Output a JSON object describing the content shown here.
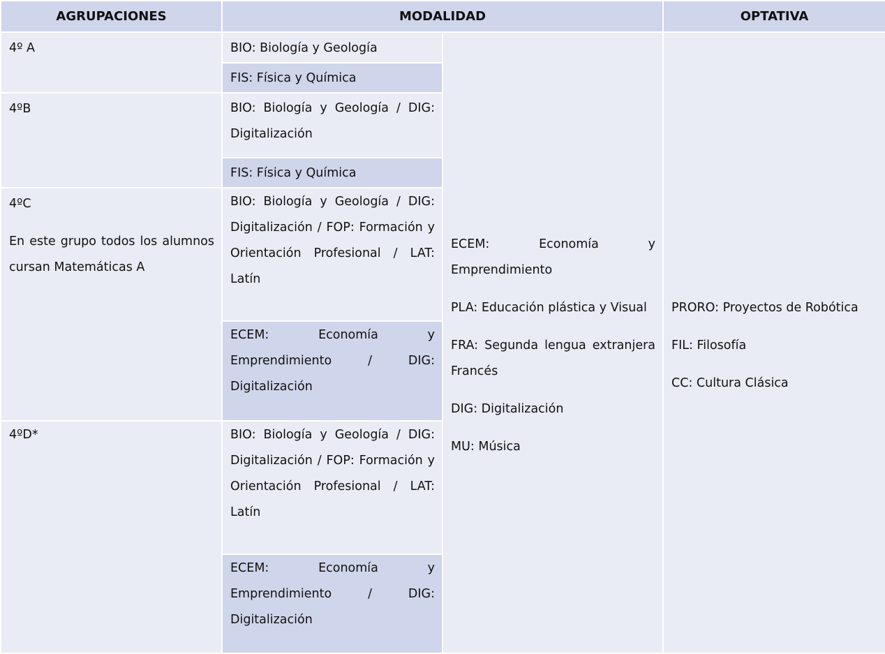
{
  "headers": {
    "agrupaciones": "AGRUPACIONES",
    "modalidad": "MODALIDAD",
    "optativa": "OPTATIVA"
  },
  "groups": {
    "a": {
      "name": "4º A",
      "modalidad": [
        "BIO: Biología y Geología",
        "FIS: Física y Química"
      ]
    },
    "b": {
      "name": "4ºB",
      "modalidad": [
        "BIO: Biología y Geología / DIG: Digitalización",
        "FIS: Física y Química"
      ]
    },
    "c": {
      "name": "4ºC",
      "note": "En este grupo todos los alumnos cursan Matemáticas A",
      "modalidad": [
        "BIO: Biología y Geología / DIG: Digitalización / FOP: Formación y Orientación Profesional / LAT: Latín",
        "ECEM: Economía y Emprendimiento / DIG: Digitalización"
      ]
    },
    "d": {
      "name": "4ºD*",
      "modalidad": [
        "BIO: Biología y Geología / DIG: Digitalización / FOP: Formación y Orientación Profesional / LAT: Latín",
        "ECEM: Economía y Emprendimiento / DIG: Digitalización"
      ]
    }
  },
  "modalidad_shared": [
    "ECEM: Economía y Emprendimiento",
    "PLA: Educación plástica y Visual",
    "FRA: Segunda lengua extranjera Francés",
    "DIG: Digitalización",
    "MU: Música"
  ],
  "optativa": [
    "PRORO: Proyectos de Robótica",
    "FIL: Filosofía",
    "CC: Cultura Clásica"
  ]
}
